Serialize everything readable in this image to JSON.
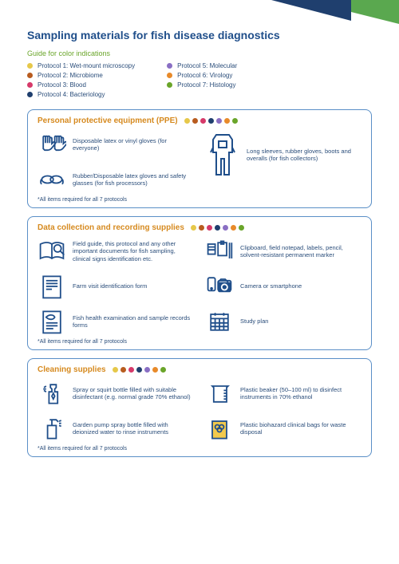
{
  "title": "Sampling materials for fish disease diagnostics",
  "legend_title": "Guide for color indications",
  "protocols": [
    {
      "label": "Protocol 1: Wet-mount microscopy",
      "color": "#e6c84a"
    },
    {
      "label": "Protocol 2: Microbiome",
      "color": "#b85c1f"
    },
    {
      "label": "Protocol 3: Blood",
      "color": "#d63a6a"
    },
    {
      "label": "Protocol 4: Bacteriology",
      "color": "#1f3f6e"
    },
    {
      "label": "Protocol 5: Molecular",
      "color": "#8a6fc4"
    },
    {
      "label": "Protocol 6: Virology",
      "color": "#e88a2a"
    },
    {
      "label": "Protocol 7: Histology",
      "color": "#6aa52a"
    }
  ],
  "dot_colors": [
    "#e6c84a",
    "#b85c1f",
    "#d63a6a",
    "#1f3f6e",
    "#8a6fc4",
    "#e88a2a",
    "#6aa52a"
  ],
  "theme": {
    "border_color": "#5a8fc7",
    "section_title_color": "#d68a1f",
    "text_color": "#2a4d7a",
    "icon_stroke": "#1f4e8a",
    "accent_yellow": "#f2c94c",
    "corner_green": "#5aa84f",
    "corner_navy": "#1f3f6e",
    "background": "#ffffff"
  },
  "sections": {
    "ppe": {
      "title": "Personal protective equipment (PPE)",
      "items": {
        "gloves_all": "Disposable latex or vinyl gloves (for everyone)",
        "gloves_proc": "Rubber/Disposable latex gloves and safety glasses (for fish processors)",
        "overalls": "Long sleeves, rubber gloves, boots and overalls (for fish collectors)"
      },
      "footnote": "*All items required for all 7 protocols"
    },
    "data": {
      "title": "Data collection and recording supplies",
      "items": {
        "field_guide": "Field guide, this protocol and any other important documents for fish sampling, clinical signs identification etc.",
        "farm_form": "Farm visit identification form",
        "health_form": "Fish health examination and sample records forms",
        "clipboard": "Clipboard, field notepad, labels, pencil, solvent-resistant permanent marker",
        "camera": "Camera or smartphone",
        "study_plan": "Study plan"
      },
      "footnote": "*All items required for all 7 protocols"
    },
    "clean": {
      "title": "Cleaning supplies",
      "items": {
        "spray": "Spray or squirt bottle filled with suitable disinfectant (e.g. normal grade 70% ethanol)",
        "pump": "Garden pump spray bottle filled with deionized water to rinse instruments",
        "beaker": "Plastic beaker (50–100 ml) to disinfect instruments in 70% ethanol",
        "biohazard": "Plastic biohazard clinical bags for waste disposal"
      },
      "footnote": "*All items required for all 7 protocols"
    }
  }
}
